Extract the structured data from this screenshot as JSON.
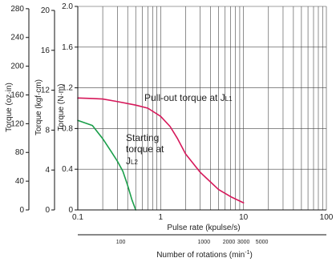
{
  "chart_data": {
    "type": "line",
    "x_scale": "log",
    "xlim": [
      0.1,
      100
    ],
    "x_ticks": [
      0.1,
      1,
      10,
      100
    ],
    "x_tick_labels": [
      "0.1",
      "1",
      "10",
      "100"
    ],
    "xlabel": "Pulse rate (kpulse/s)",
    "ylim": [
      0,
      2.0
    ],
    "ylabel": "Torque (N·m)",
    "y_ticks": [
      0,
      0.4,
      0.8,
      1.2,
      1.6,
      2.0
    ],
    "y_tick_labels": [
      "0",
      "0.4",
      "0.8",
      "1.2",
      "1.6",
      "2.0"
    ],
    "grid": true,
    "secondary_y_axes": [
      {
        "label": "Torque (kgf·cm)",
        "ylim": [
          0,
          20.4
        ],
        "ticks": [
          0,
          4,
          8,
          12,
          16,
          20
        ],
        "tick_labels": [
          "0",
          "4",
          "8",
          "12",
          "16",
          "20"
        ]
      },
      {
        "label": "Torque (oz·in)",
        "ylim": [
          0,
          283.2
        ],
        "ticks": [
          0,
          40,
          80,
          120,
          160,
          200,
          240,
          280
        ],
        "tick_labels": [
          "0",
          "40",
          "80",
          "120",
          "160",
          "200",
          "240",
          "280"
        ]
      }
    ],
    "secondary_x_axis": {
      "label": "Number of rotations (min",
      "label_sup": "-1",
      "label_end": ")",
      "ticks": [
        0.33,
        3.33,
        6.67,
        10,
        16.67
      ],
      "tick_labels": [
        "100",
        "1000",
        "2000",
        "3000",
        "5000"
      ]
    },
    "series": [
      {
        "name": "Pull-out torque at J",
        "name_sub": "L1",
        "color": "#d6185a",
        "x": [
          0.1,
          0.15,
          0.2,
          0.3,
          0.5,
          0.7,
          1.0,
          1.3,
          1.6,
          2.0,
          3.0,
          5.0,
          7.0,
          10.0
        ],
        "y": [
          1.1,
          1.095,
          1.09,
          1.065,
          1.03,
          1.0,
          0.92,
          0.82,
          0.7,
          0.55,
          0.37,
          0.2,
          0.13,
          0.07
        ]
      },
      {
        "name": "Starting torque at J",
        "name_sub": "L2",
        "color": "#1a9e4a",
        "x": [
          0.1,
          0.15,
          0.2,
          0.25,
          0.3,
          0.35,
          0.4,
          0.45,
          0.5
        ],
        "y": [
          0.88,
          0.83,
          0.7,
          0.58,
          0.48,
          0.38,
          0.24,
          0.1,
          0.0
        ]
      }
    ],
    "annotations": [
      {
        "text_parts": [
          "Pull-out torque at J",
          "L1"
        ],
        "x": 2.0,
        "y": 1.15
      },
      {
        "text_lines": [
          "Starting",
          "torque at",
          "J"
        ],
        "sub": "L2",
        "x": 0.55,
        "y": 0.72
      }
    ]
  }
}
